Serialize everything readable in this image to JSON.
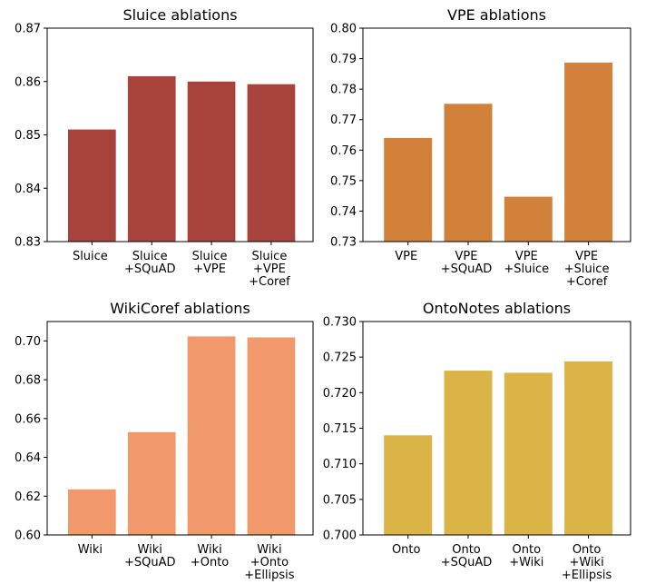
{
  "chart_data": [
    {
      "type": "bar",
      "title": "Sluice ablations",
      "categories": [
        "Sluice",
        "Sluice\n+SQuAD",
        "Sluice\n+VPE",
        "Sluice\n+VPE\n+Coref"
      ],
      "values": [
        0.851,
        0.861,
        0.86,
        0.8595
      ],
      "ylim": [
        0.83,
        0.87
      ],
      "yticks": [
        "0.83",
        "0.84",
        "0.85",
        "0.86",
        "0.87"
      ],
      "color": "#a8433b",
      "grid": false
    },
    {
      "type": "bar",
      "title": "VPE ablations",
      "categories": [
        "VPE",
        "VPE\n+SQuAD",
        "VPE\n+Sluice",
        "VPE\n+Sluice\n+Coref"
      ],
      "values": [
        0.764,
        0.7752,
        0.7447,
        0.7887
      ],
      "ylim": [
        0.73,
        0.8
      ],
      "yticks": [
        "0.73",
        "0.74",
        "0.75",
        "0.76",
        "0.77",
        "0.78",
        "0.79",
        "0.80"
      ],
      "color": "#d2813b",
      "grid": false
    },
    {
      "type": "bar",
      "title": "WikiCoref ablations",
      "categories": [
        "Wiki",
        "Wiki\n+SQuAD",
        "Wiki\n+Onto",
        "Wiki\n+Onto\n+Ellipsis"
      ],
      "values": [
        0.6235,
        0.653,
        0.7023,
        0.7018
      ],
      "ylim": [
        0.6,
        0.71
      ],
      "yticks": [
        "0.60",
        "0.62",
        "0.64",
        "0.66",
        "0.68",
        "0.70"
      ],
      "color": "#f2996c",
      "grid": false
    },
    {
      "type": "bar",
      "title": "OntoNotes ablations",
      "categories": [
        "Onto",
        "Onto\n+SQuAD",
        "Onto\n+Wiki",
        "Onto\n+Wiki\n+Ellipsis"
      ],
      "values": [
        0.714,
        0.7231,
        0.7228,
        0.7244
      ],
      "ylim": [
        0.7,
        0.73
      ],
      "yticks": [
        "0.700",
        "0.705",
        "0.710",
        "0.715",
        "0.720",
        "0.725",
        "0.730"
      ],
      "color": "#dbb447",
      "grid": false
    }
  ]
}
